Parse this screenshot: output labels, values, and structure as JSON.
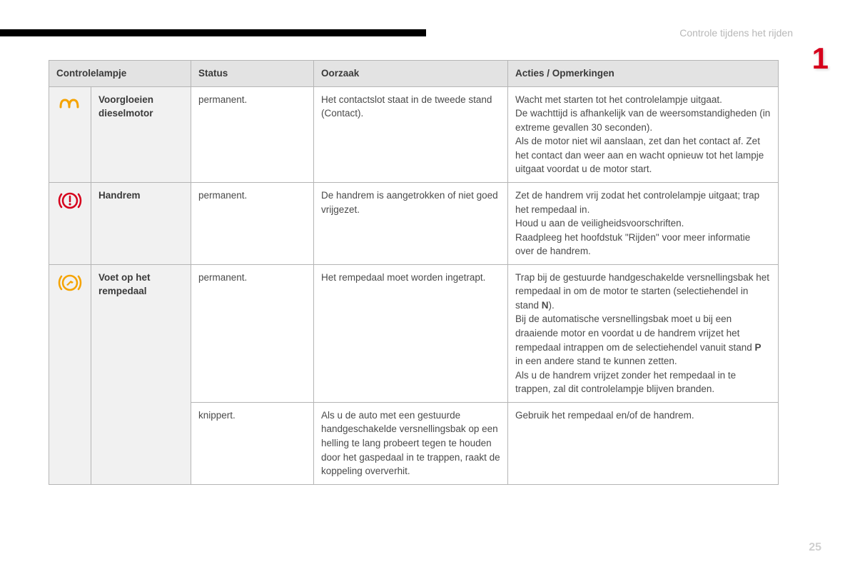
{
  "header": {
    "section_title": "Controle tijdens het rijden",
    "chapter_number": "1",
    "page_number": "25"
  },
  "table": {
    "columns": {
      "c1": "Controlelampje",
      "c2": "Status",
      "c3": "Oorzaak",
      "c4": "Acties / Opmerkingen"
    },
    "rows": {
      "r1": {
        "icon": "preheat-coil-icon",
        "icon_color": "#f5a300",
        "label": "Voorgloeien dieselmotor",
        "status": "permanent.",
        "cause": "Het contactslot staat in de tweede stand (Contact).",
        "action": "Wacht met starten tot het controlelampje uitgaat.\nDe wachttijd is afhankelijk van de weersomstandigheden (in extreme gevallen 30 seconden).\nAls de motor niet wil aanslaan, zet dan het contact af. Zet het contact dan weer aan en wacht opnieuw tot het lampje uitgaat voordat u de motor start."
      },
      "r2": {
        "icon": "handbrake-warning-icon",
        "icon_color": "#d6001c",
        "label": "Handrem",
        "status": "permanent.",
        "cause": "De handrem is aangetrokken of niet goed vrijgezet.",
        "action": "Zet de handrem vrij zodat het controlelampje uitgaat; trap het rempedaal in.\nHoud u aan de veiligheidsvoorschriften.\nRaadpleeg het hoofdstuk \"Rijden\" voor meer informatie over de handrem."
      },
      "r3": {
        "icon": "foot-on-brake-icon",
        "icon_color": "#f5a300",
        "label": "Voet op het rempedaal",
        "status": "permanent.",
        "cause": "Het rempedaal moet worden ingetrapt.",
        "action_pre": "Trap bij de gestuurde handgeschakelde versnellingsbak het rempedaal in om de motor te starten (selectiehendel in stand ",
        "action_bold1": "N",
        "action_mid1": ").\nBij de automatische versnellingsbak moet u bij een draaiende motor en voordat u de handrem vrijzet het rempedaal intrappen om de selectiehendel vanuit stand ",
        "action_bold2": "P",
        "action_post": " in een andere stand te kunnen zetten.\nAls u de handrem vrijzet zonder het rempedaal in te trappen, zal dit controlelampje blijven branden."
      },
      "r4": {
        "status": "knippert.",
        "cause": "Als u de auto met een gestuurde handgeschakelde versnellingsbak op een helling te lang probeert tegen te houden door het gaspedaal in te trappen, raakt de koppeling oververhit.",
        "action": "Gebruik het rempedaal en/of de handrem."
      }
    }
  },
  "colors": {
    "brand_red": "#d6001c",
    "icon_amber": "#f5a300",
    "border": "#b5b5b5",
    "header_bg": "#e3e3e3",
    "row_label_bg": "#f1f1f1",
    "text": "#4a4a4a",
    "muted": "#b8b8b8"
  }
}
